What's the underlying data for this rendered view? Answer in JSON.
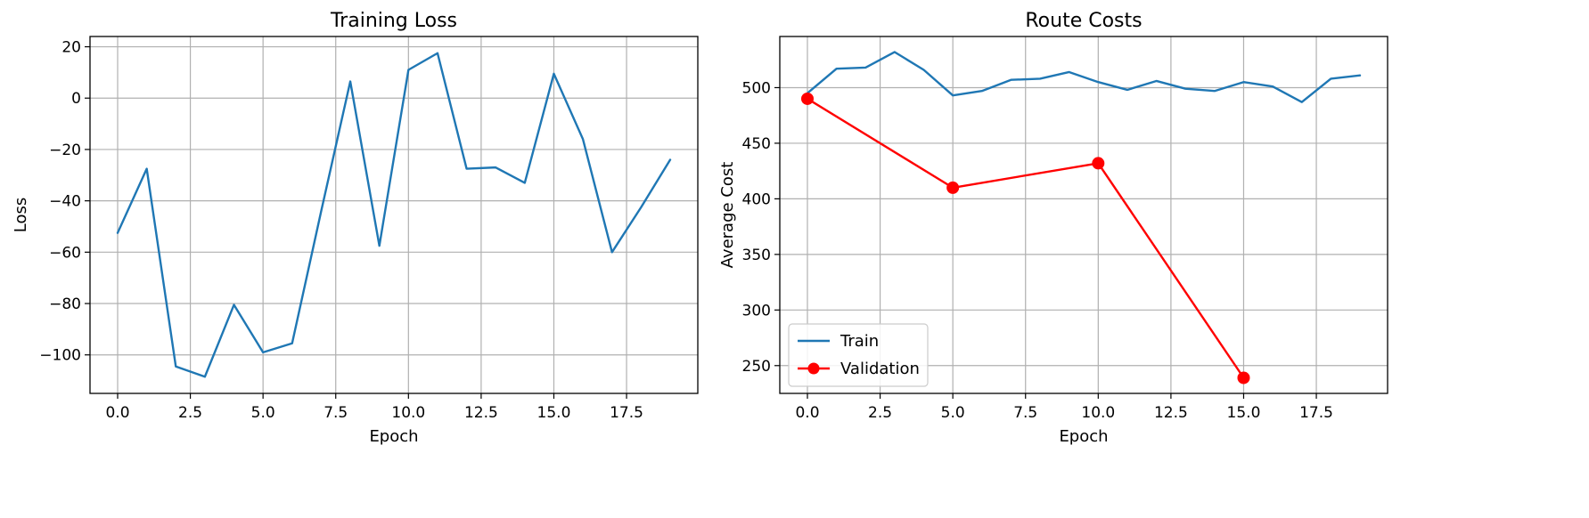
{
  "chart_data": [
    {
      "type": "line",
      "title": "Training Loss",
      "xlabel": "Epoch",
      "ylabel": "Loss",
      "xlim": [
        -0.95,
        19.95
      ],
      "ylim": [
        -115,
        24
      ],
      "xticks": [
        0.0,
        2.5,
        5.0,
        7.5,
        10.0,
        12.5,
        15.0,
        17.5
      ],
      "xtick_labels": [
        "0.0",
        "2.5",
        "5.0",
        "7.5",
        "10.0",
        "12.5",
        "15.0",
        "17.5"
      ],
      "yticks": [
        -100,
        -80,
        -60,
        -40,
        -20,
        0,
        20
      ],
      "ytick_labels": [
        "−100",
        "−80",
        "−60",
        "−40",
        "−20",
        "0",
        "20"
      ],
      "grid": true,
      "series": [
        {
          "color": "#1f77b4",
          "marker": "none",
          "x": [
            0,
            1,
            2,
            3,
            4,
            5,
            6,
            7,
            8,
            9,
            10,
            11,
            12,
            13,
            14,
            15,
            16,
            17,
            18,
            19
          ],
          "y": [
            -52.5,
            -27.5,
            -104.5,
            -108.5,
            -80.5,
            -99,
            -95.5,
            -44,
            6.5,
            -57.5,
            11,
            17.5,
            -27.5,
            -27,
            -33,
            9.5,
            -16,
            -60,
            -42.5,
            -24
          ]
        }
      ]
    },
    {
      "type": "line",
      "title": "Route Costs",
      "xlabel": "Epoch",
      "ylabel": "Average Cost",
      "xlim": [
        -0.95,
        19.95
      ],
      "ylim": [
        225,
        546
      ],
      "xticks": [
        0.0,
        2.5,
        5.0,
        7.5,
        10.0,
        12.5,
        15.0,
        17.5
      ],
      "xtick_labels": [
        "0.0",
        "2.5",
        "5.0",
        "7.5",
        "10.0",
        "12.5",
        "15.0",
        "17.5"
      ],
      "yticks": [
        250,
        300,
        350,
        400,
        450,
        500
      ],
      "ytick_labels": [
        "250",
        "300",
        "350",
        "400",
        "450",
        "500"
      ],
      "grid": true,
      "legend_loc": "lower-left",
      "series": [
        {
          "name": "Train",
          "color": "#1f77b4",
          "marker": "none",
          "x": [
            0,
            1,
            2,
            3,
            4,
            5,
            6,
            7,
            8,
            9,
            10,
            11,
            12,
            13,
            14,
            15,
            16,
            17,
            18,
            19
          ],
          "y": [
            495,
            517,
            518,
            532,
            516,
            493,
            497,
            507,
            508,
            514,
            505,
            498,
            506,
            499,
            497,
            505,
            501,
            487,
            508,
            511
          ]
        },
        {
          "name": "Validation",
          "color": "#ff0000",
          "marker": "circle",
          "x": [
            0,
            5,
            10,
            15
          ],
          "y": [
            490,
            410,
            432,
            239
          ]
        }
      ]
    }
  ]
}
